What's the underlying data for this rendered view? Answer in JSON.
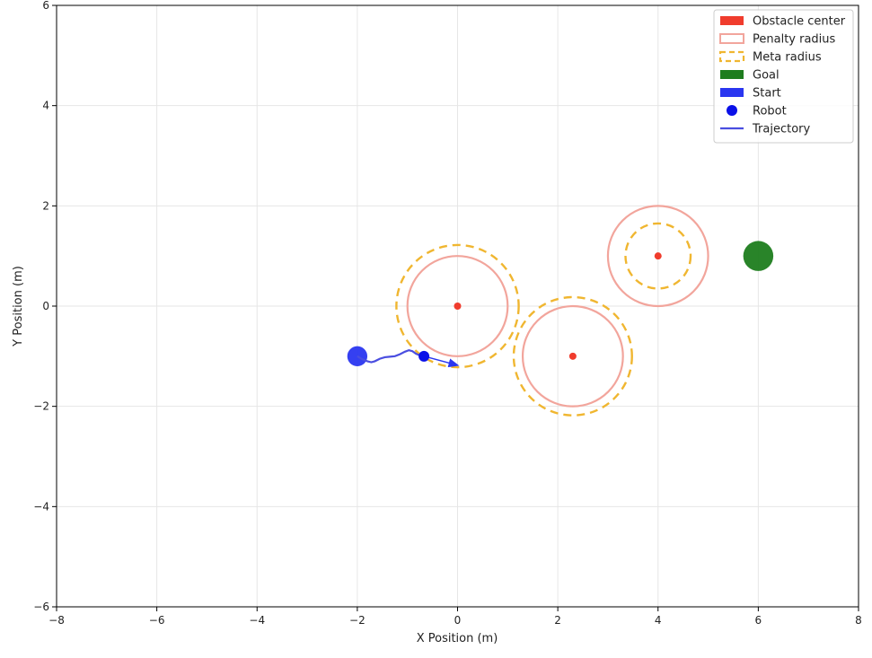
{
  "chart_data": {
    "type": "scatter",
    "title": "",
    "xlabel": "X Position (m)",
    "ylabel": "Y Position (m)",
    "xlim": [
      -8,
      8
    ],
    "ylim": [
      -6,
      6
    ],
    "x_ticks": [
      -8,
      -6,
      -4,
      -2,
      0,
      2,
      4,
      6,
      8
    ],
    "y_ticks": [
      -6,
      -4,
      -2,
      0,
      2,
      4,
      6
    ],
    "x_tick_labels": [
      "−8",
      "−6",
      "−4",
      "−2",
      "0",
      "2",
      "4",
      "6",
      "8"
    ],
    "y_tick_labels": [
      "−6",
      "−4",
      "−2",
      "0",
      "2",
      "4",
      "6"
    ],
    "grid": true,
    "obstacles": [
      {
        "x": 0.0,
        "y": 0.0,
        "penalty_radius": 1.0,
        "meta_radius": 1.22
      },
      {
        "x": 2.3,
        "y": -1.0,
        "penalty_radius": 1.0,
        "meta_radius": 1.18
      },
      {
        "x": 4.0,
        "y": 1.0,
        "penalty_radius": 1.0,
        "meta_radius": 0.65
      }
    ],
    "goal": {
      "x": 6.0,
      "y": 1.0,
      "radius": 0.3
    },
    "start": {
      "x": -2.0,
      "y": -1.0,
      "radius": 0.2
    },
    "robot": {
      "x": -0.67,
      "y": -1.0
    },
    "heading_arrow": {
      "from": [
        -0.67,
        -1.0
      ],
      "to": [
        0.0,
        -1.18
      ]
    },
    "trajectory": {
      "x": [
        -2.0,
        -1.9,
        -1.8,
        -1.72,
        -1.65,
        -1.55,
        -1.45,
        -1.35,
        -1.25,
        -1.15,
        -1.05,
        -0.97,
        -0.9,
        -0.83,
        -0.76,
        -0.7,
        -0.67
      ],
      "y": [
        -1.0,
        -1.06,
        -1.1,
        -1.12,
        -1.1,
        -1.05,
        -1.02,
        -1.01,
        -1.0,
        -0.96,
        -0.91,
        -0.88,
        -0.9,
        -0.95,
        -0.98,
        -0.99,
        -1.0
      ]
    },
    "legend": {
      "placement": "top-right",
      "entries": [
        "Obstacle center",
        "Penalty radius",
        "Meta radius",
        "Goal",
        "Start",
        "Robot",
        "Trajectory"
      ]
    },
    "colors": {
      "obstacle_center": "#f03c2d",
      "penalty": "#f2a59c",
      "meta": "#f0b630",
      "goal": "#1e7d1e",
      "start": "#2a36f0",
      "robot": "#0a10e8",
      "trajectory": "#4a4ee0",
      "grid": "#e6e6e6"
    }
  }
}
